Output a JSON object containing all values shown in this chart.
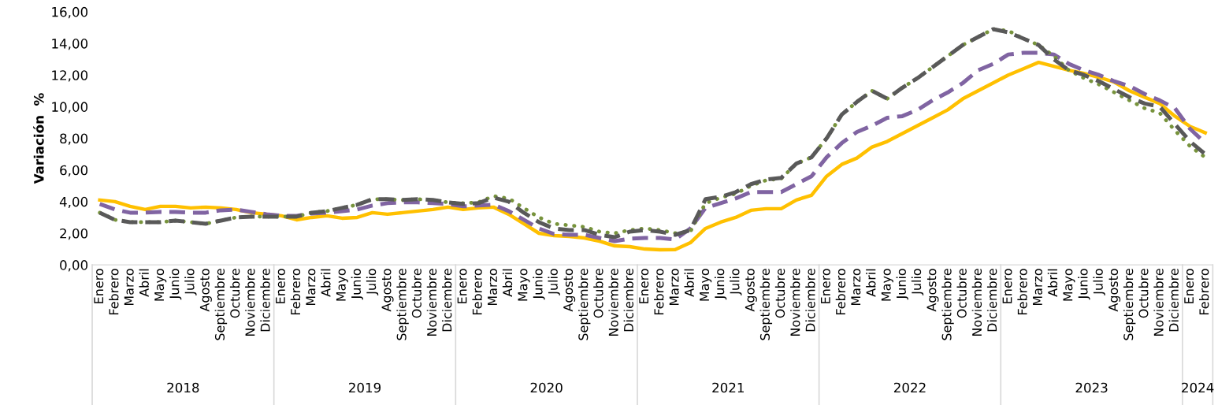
{
  "chart_data": {
    "type": "line",
    "ylabel": "Variación  %",
    "categories": [
      "Enero",
      "Febrero",
      "Marzo",
      "Abril",
      "Mayo",
      "Junio",
      "Julio",
      "Agosto",
      "Septiembre",
      "Octubre",
      "Noviembre",
      "Diciembre",
      "Enero",
      "Febrero",
      "Marzo",
      "Abril",
      "Mayo",
      "Junio",
      "Julio",
      "Agosto",
      "Septiembre",
      "Octubre",
      "Noviembre",
      "Diciembre",
      "Enero",
      "Febrero",
      "Marzo",
      "Abril",
      "Mayo",
      "Junio",
      "Julio",
      "Agosto",
      "Septiembre",
      "Octubre",
      "Noviembre",
      "Diciembre",
      "Enero",
      "Febrero",
      "Marzo",
      "Abril",
      "Mayo",
      "Junio",
      "Julio",
      "Agosto",
      "Septiembre",
      "Octubre",
      "Noviembre",
      "Diciembre",
      "Enero",
      "Febrero",
      "Marzo",
      "Abril",
      "Mayo",
      "Junio",
      "Julio",
      "Agosto",
      "Septiembre",
      "Octubre",
      "Noviembre",
      "Diciembre",
      "Enero",
      "Febrero",
      "Marzo",
      "Abril",
      "Mayo",
      "Junio",
      "Julio",
      "Agosto",
      "Septiembre",
      "Octubre",
      "Noviembre",
      "Diciembre",
      "Enero",
      "Febrero"
    ],
    "annotations": [
      "2018",
      "2019",
      "2020",
      "2021",
      "2022",
      "2023",
      "2024"
    ],
    "ylim": [
      0,
      16
    ],
    "yticks": [
      {
        "value": 0,
        "label": "0,00"
      },
      {
        "value": 2,
        "label": "2,00"
      },
      {
        "value": 4,
        "label": "4,00"
      },
      {
        "value": 6,
        "label": "6,00"
      },
      {
        "value": 8,
        "label": "8,00"
      },
      {
        "value": 10,
        "label": "10,00"
      },
      {
        "value": 12,
        "label": "12,00"
      },
      {
        "value": 14,
        "label": "14,00"
      },
      {
        "value": 16,
        "label": "16,00"
      }
    ],
    "grid": false,
    "marker": "none",
    "series": [
      {
        "color": "#ffc000",
        "line_style": "solid",
        "values": [
          4.1,
          4.0,
          3.7,
          3.5,
          3.7,
          3.7,
          3.6,
          3.65,
          3.6,
          3.5,
          3.3,
          3.2,
          3.1,
          2.85,
          3.0,
          3.1,
          2.95,
          3.0,
          3.3,
          3.2,
          3.3,
          3.4,
          3.5,
          3.65,
          3.5,
          3.6,
          3.65,
          3.2,
          2.6,
          2.0,
          1.85,
          1.8,
          1.7,
          1.5,
          1.2,
          1.15,
          1.0,
          0.95,
          0.97,
          1.4,
          2.3,
          2.7,
          3.0,
          3.45,
          3.55,
          3.55,
          4.1,
          4.4,
          5.6,
          6.35,
          6.75,
          7.45,
          7.8,
          8.3,
          8.8,
          9.3,
          9.8,
          10.5,
          11.0,
          11.5,
          12.0,
          12.4,
          12.8,
          12.55,
          12.3,
          12.1,
          11.85,
          11.55,
          11.0,
          10.6,
          10.2,
          9.4,
          8.75,
          8.35
        ]
      },
      {
        "color": "#8064a2",
        "line_style": "dashed",
        "values": [
          3.85,
          3.5,
          3.3,
          3.3,
          3.35,
          3.35,
          3.3,
          3.3,
          3.45,
          3.5,
          3.35,
          3.2,
          3.1,
          3.1,
          3.25,
          3.3,
          3.4,
          3.5,
          3.75,
          3.9,
          3.95,
          3.95,
          3.9,
          3.85,
          3.7,
          3.75,
          3.8,
          3.4,
          2.85,
          2.3,
          1.95,
          1.9,
          1.9,
          1.7,
          1.5,
          1.65,
          1.7,
          1.7,
          1.6,
          2.3,
          3.6,
          3.9,
          4.2,
          4.6,
          4.6,
          4.6,
          5.1,
          5.6,
          6.8,
          7.7,
          8.4,
          8.8,
          9.3,
          9.4,
          9.8,
          10.4,
          10.9,
          11.5,
          12.3,
          12.7,
          13.3,
          13.4,
          13.4,
          13.3,
          12.7,
          12.3,
          12.0,
          11.6,
          11.3,
          10.8,
          10.4,
          9.9,
          8.6,
          7.7
        ]
      },
      {
        "color": "#77933c",
        "line_style": "dotted",
        "values": [
          3.3,
          2.85,
          2.7,
          2.7,
          2.7,
          2.8,
          2.7,
          2.6,
          2.8,
          3.0,
          3.05,
          3.05,
          3.05,
          3.05,
          3.3,
          3.4,
          3.6,
          3.8,
          4.15,
          4.15,
          4.1,
          4.15,
          4.1,
          3.95,
          3.9,
          3.95,
          4.35,
          4.2,
          3.6,
          3.0,
          2.6,
          2.5,
          2.4,
          2.1,
          2.0,
          2.2,
          2.3,
          2.2,
          2.0,
          2.1,
          3.9,
          4.25,
          4.5,
          5.0,
          5.35,
          5.45,
          6.4,
          6.8,
          8.0,
          9.5,
          10.3,
          11.0,
          10.5,
          11.2,
          11.8,
          12.5,
          13.2,
          13.9,
          14.4,
          14.9,
          14.8,
          14.3,
          13.9,
          13.2,
          12.3,
          11.8,
          11.4,
          10.9,
          10.4,
          9.9,
          9.6,
          8.5,
          7.5,
          6.8
        ]
      },
      {
        "color": "#595959",
        "line_style": "dashed",
        "values": [
          3.3,
          2.85,
          2.7,
          2.7,
          2.7,
          2.8,
          2.7,
          2.6,
          2.8,
          3.0,
          3.05,
          3.05,
          3.05,
          3.05,
          3.3,
          3.4,
          3.6,
          3.8,
          4.15,
          4.15,
          4.1,
          4.15,
          4.1,
          3.95,
          3.85,
          3.9,
          4.25,
          4.0,
          3.3,
          2.7,
          2.3,
          2.2,
          2.2,
          1.9,
          1.75,
          2.1,
          2.2,
          2.1,
          1.9,
          2.2,
          4.15,
          4.3,
          4.6,
          5.1,
          5.4,
          5.5,
          6.4,
          6.8,
          8.0,
          9.5,
          10.3,
          11.0,
          10.5,
          11.2,
          11.8,
          12.5,
          13.2,
          13.9,
          14.4,
          14.9,
          14.7,
          14.3,
          13.9,
          13.0,
          12.3,
          12.0,
          11.6,
          11.1,
          10.6,
          10.2,
          10.0,
          8.9,
          7.8,
          7.0
        ]
      }
    ]
  }
}
